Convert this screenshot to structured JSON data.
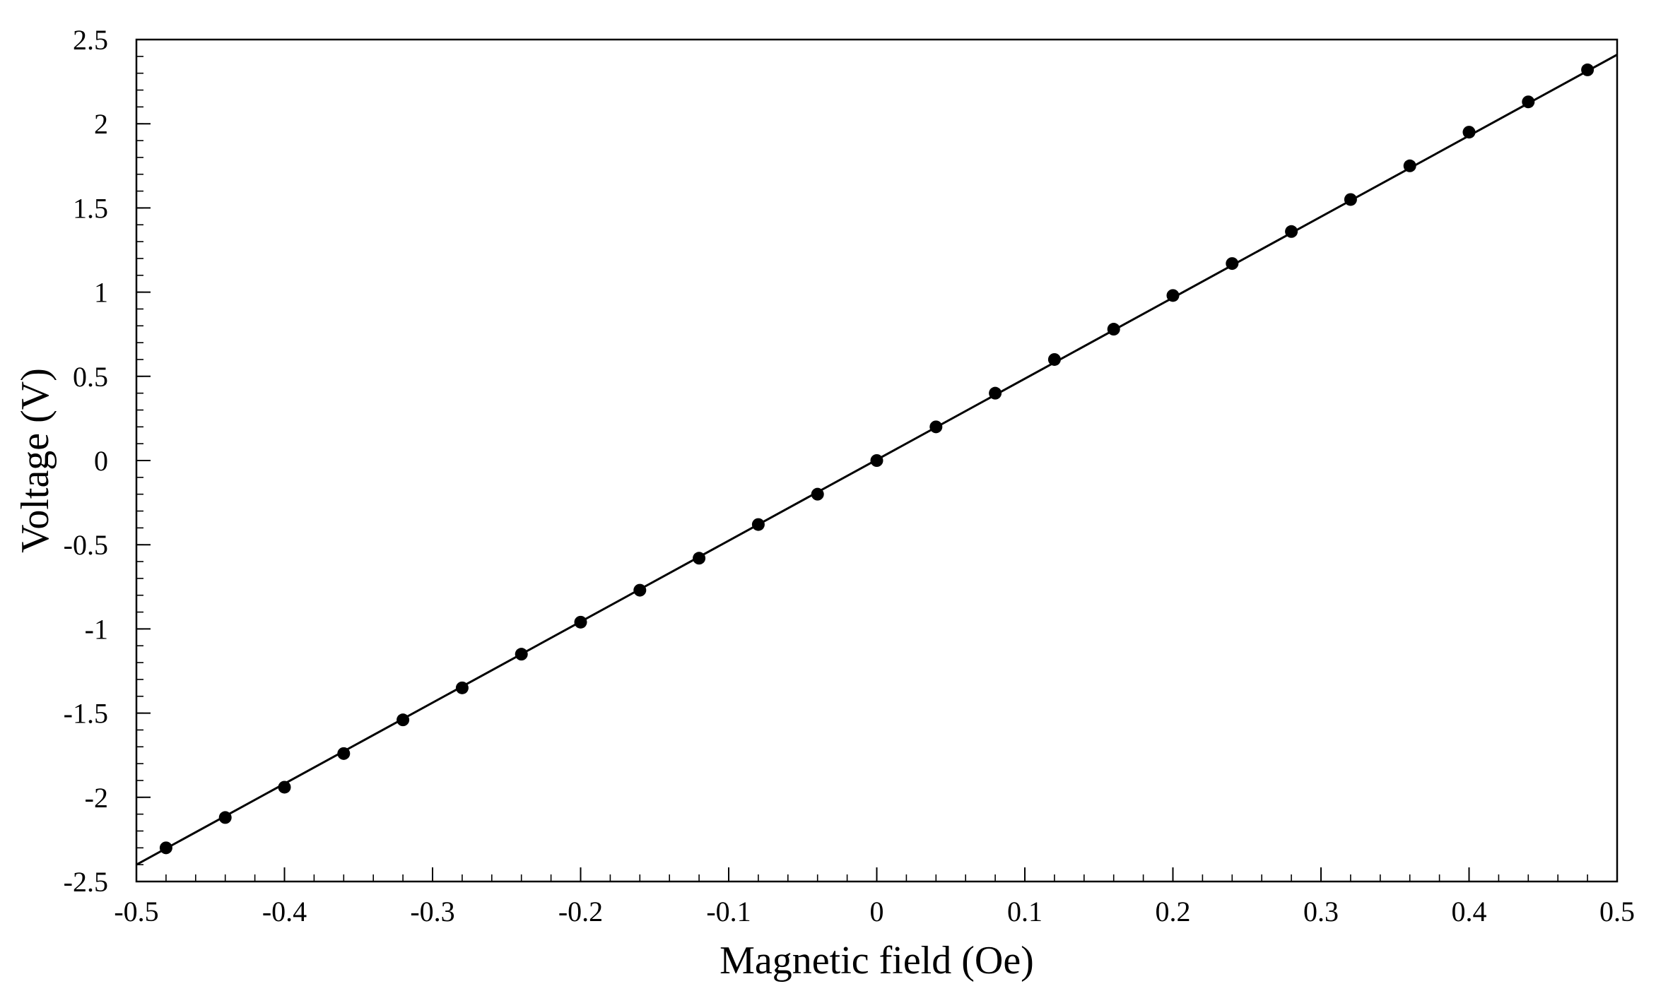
{
  "chart_data": {
    "type": "scatter",
    "title": "",
    "xlabel": "Magnetic field (Oe)",
    "ylabel": "Voltage (V)",
    "xlim": [
      -0.5,
      0.5
    ],
    "ylim": [
      -2.5,
      2.5
    ],
    "xticks": [
      -0.5,
      -0.4,
      -0.3,
      -0.2,
      -0.1,
      0,
      0.1,
      0.2,
      0.3,
      0.4,
      0.5
    ],
    "xtick_labels": [
      "-0.5",
      "-0.4",
      "-0.3",
      "-0.2",
      "-0.1",
      "0",
      "0.1",
      "0.2",
      "0.3",
      "0.4",
      "0.5"
    ],
    "yticks": [
      -2.5,
      -2,
      -1.5,
      -1,
      -0.5,
      0,
      0.5,
      1,
      1.5,
      2,
      2.5
    ],
    "ytick_labels": [
      "-2.5",
      "-2",
      "-1.5",
      "-1",
      "-0.5",
      "0",
      "0.5",
      "1",
      "1.5",
      "2",
      "2.5"
    ],
    "x_minor_step": 0.02,
    "y_minor_step": 0.1,
    "grid": false,
    "legend": "none",
    "series": [
      {
        "kind": "points",
        "color": "#000000",
        "x": [
          -0.48,
          -0.44,
          -0.4,
          -0.36,
          -0.32,
          -0.28,
          -0.24,
          -0.2,
          -0.16,
          -0.12,
          -0.08,
          -0.04,
          0.0,
          0.04,
          0.08,
          0.12,
          0.16,
          0.2,
          0.24,
          0.28,
          0.32,
          0.36,
          0.4,
          0.44,
          0.48
        ],
        "y": [
          -2.3,
          -2.12,
          -1.94,
          -1.74,
          -1.54,
          -1.35,
          -1.15,
          -0.96,
          -0.77,
          -0.58,
          -0.38,
          -0.2,
          0.0,
          0.2,
          0.4,
          0.6,
          0.78,
          0.98,
          1.17,
          1.36,
          1.55,
          1.75,
          1.95,
          2.13,
          2.32
        ]
      },
      {
        "kind": "fit-line",
        "color": "#000000",
        "x": [
          -0.5,
          0.5
        ],
        "y": [
          -2.4,
          2.41
        ]
      }
    ]
  }
}
